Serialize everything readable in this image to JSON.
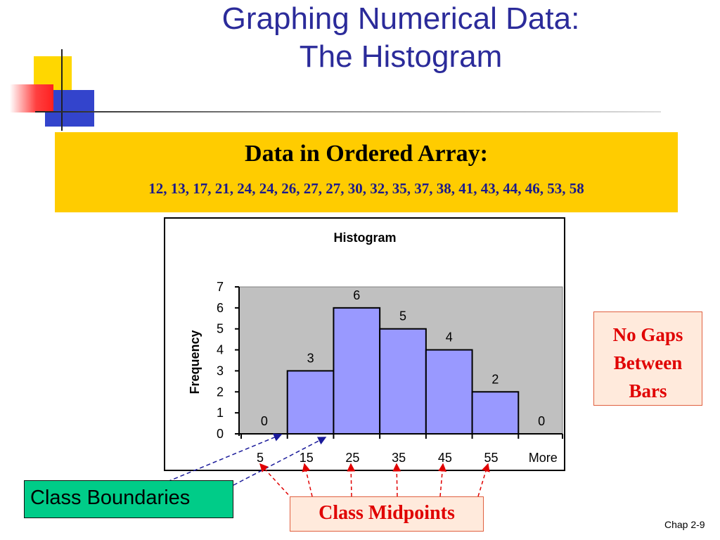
{
  "slide": {
    "title_line1": "Graphing Numerical Data:",
    "title_line2": "The Histogram",
    "page_number": "Chap 2-9"
  },
  "data_box": {
    "title": "Data in Ordered Array:",
    "values_text": "12, 13, 17, 21, 24, 24, 26, 27, 27, 30, 32, 35, 37, 38, 41, 43, 44, 46, 53, 58"
  },
  "callouts": {
    "no_gaps_lines": [
      "No Gaps",
      "Between",
      "Bars"
    ],
    "class_boundaries": "Class Boundaries",
    "class_midpoints": "Class Midpoints"
  },
  "colors": {
    "title": "#2b2b9a",
    "data_box_bg": "#ffcc00",
    "bar_fill": "#9999ff",
    "plot_bg": "#c0c0c0",
    "callout_red": "#e00000",
    "callout_bg": "#ffeadc",
    "boundaries_bg": "#00cc88"
  },
  "chart_data": {
    "type": "bar",
    "title": "Histogram",
    "ylabel": "Frequency",
    "xlabel": "",
    "categories": [
      "5",
      "15",
      "25",
      "35",
      "45",
      "55",
      "More"
    ],
    "values": [
      0,
      3,
      6,
      5,
      4,
      2,
      0
    ],
    "ylim": [
      0,
      7
    ],
    "yticks": [
      0,
      1,
      2,
      3,
      4,
      5,
      6,
      7
    ],
    "data_labels": true,
    "bar_gap": 0,
    "grid": false
  }
}
